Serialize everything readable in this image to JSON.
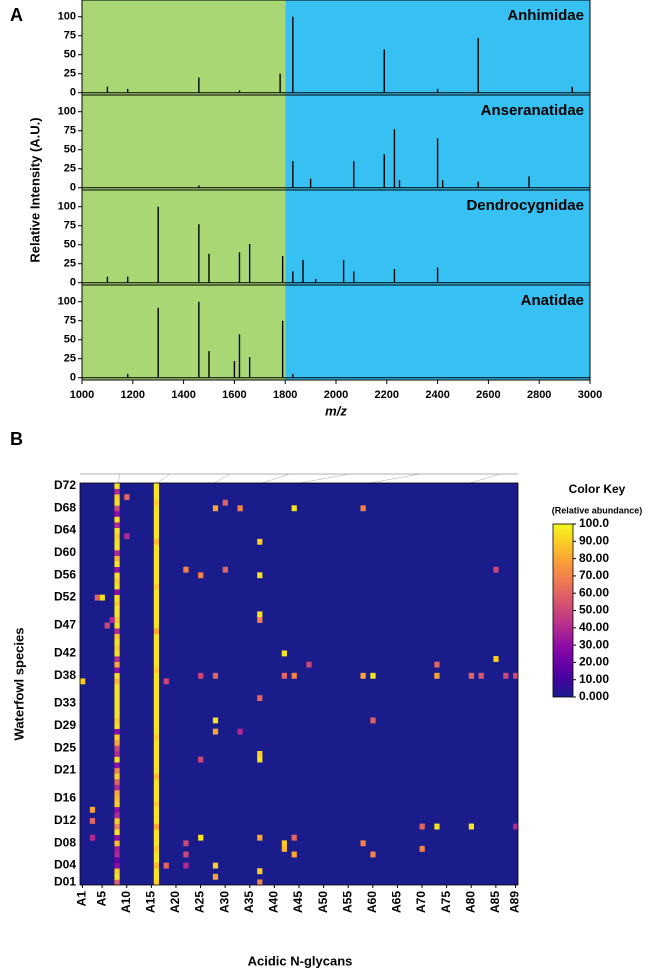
{
  "chart_data": [
    {
      "type": "stem",
      "panel_label": "A",
      "xlabel": "m/z",
      "ylabel": "Relative Intensity (A.U.)",
      "xlim": [
        1000,
        3000
      ],
      "xticks": [
        1000,
        1200,
        1400,
        1600,
        1800,
        2000,
        2200,
        2400,
        2600,
        2800,
        3000
      ],
      "ylim": [
        -3,
        122
      ],
      "yticks": [
        0,
        25,
        50,
        75,
        100
      ],
      "regions": [
        {
          "xlim": [
            1000,
            1800
          ],
          "color": "#a9d774"
        },
        {
          "xlim": [
            1800,
            3000
          ],
          "color": "#37c1f2"
        }
      ],
      "series": [
        {
          "name": "Anhimidae",
          "color": "#000000",
          "x": [
            1100,
            1180,
            1460,
            1620,
            1780,
            1830,
            2190,
            2400,
            2560,
            2930
          ],
          "values": [
            8,
            5,
            20,
            3,
            25,
            100,
            57,
            5,
            72,
            8
          ]
        },
        {
          "name": "Anseranatidae",
          "color": "#000000",
          "x": [
            1460,
            1830,
            1900,
            2070,
            2190,
            2230,
            2250,
            2400,
            2420,
            2560,
            2760
          ],
          "values": [
            3,
            35,
            12,
            35,
            44,
            77,
            10,
            65,
            10,
            8,
            15
          ]
        },
        {
          "name": "Dendrocygnidae",
          "color": "#000000",
          "x": [
            1100,
            1180,
            1300,
            1460,
            1500,
            1620,
            1660,
            1790,
            1830,
            1870,
            1920,
            2030,
            2070,
            2230,
            2400
          ],
          "values": [
            8,
            8,
            100,
            77,
            38,
            40,
            51,
            35,
            15,
            30,
            5,
            30,
            15,
            18,
            20
          ]
        },
        {
          "name": "Anatidae",
          "color": "#000000",
          "x": [
            1180,
            1300,
            1460,
            1500,
            1600,
            1620,
            1660,
            1790,
            1830
          ],
          "values": [
            5,
            92,
            100,
            35,
            22,
            57,
            27,
            75,
            5
          ]
        }
      ]
    },
    {
      "type": "heatmap",
      "panel_label": "B",
      "xlabel": "Acidic N-glycans",
      "ylabel": "Waterfowl species",
      "columns": [
        "A1",
        null,
        null,
        null,
        "A5",
        null,
        null,
        null,
        null,
        "A10",
        null,
        null,
        null,
        null,
        "A15",
        null,
        null,
        null,
        null,
        "A20",
        null,
        null,
        null,
        null,
        "A25",
        null,
        null,
        null,
        null,
        "A30",
        null,
        null,
        null,
        null,
        "A35",
        null,
        null,
        null,
        null,
        "A40",
        null,
        null,
        null,
        null,
        "A45",
        null,
        null,
        null,
        null,
        "A50",
        null,
        null,
        null,
        null,
        "A55",
        null,
        null,
        null,
        null,
        "A60",
        null,
        null,
        null,
        null,
        "A65",
        null,
        null,
        null,
        null,
        "A70",
        null,
        null,
        null,
        null,
        "A75",
        null,
        null,
        null,
        null,
        "A80",
        null,
        null,
        null,
        null,
        "A85",
        null,
        null,
        null,
        "A89"
      ],
      "rows": [
        "D01",
        null,
        null,
        "D04",
        null,
        null,
        null,
        "D08",
        null,
        null,
        null,
        "D12",
        null,
        null,
        null,
        "D16",
        null,
        null,
        null,
        null,
        "D21",
        null,
        null,
        null,
        "D25",
        null,
        null,
        null,
        "D29",
        null,
        null,
        null,
        "D33",
        null,
        null,
        null,
        null,
        "D38",
        null,
        null,
        null,
        "D42",
        null,
        null,
        null,
        null,
        "D47",
        null,
        null,
        null,
        null,
        "D52",
        null,
        null,
        null,
        "D56",
        null,
        null,
        null,
        "D60",
        null,
        null,
        null,
        "D64",
        null,
        null,
        null,
        "D68",
        null,
        null,
        null,
        "D72"
      ],
      "full_columns": [
        {
          "column": 7,
          "values": [
            60,
            95,
            90,
            30,
            20,
            40,
            35,
            85,
            30,
            95,
            70,
            90,
            40,
            30,
            90,
            85,
            80,
            40,
            60,
            90,
            70,
            30,
            95,
            40,
            50,
            80,
            90,
            30,
            95,
            90,
            95,
            95,
            95,
            95,
            95,
            95,
            85,
            95,
            30,
            80,
            40,
            95,
            90,
            95,
            90,
            40,
            95,
            90,
            95,
            95,
            90,
            95,
            30,
            95,
            90,
            95,
            30,
            95,
            85,
            40,
            95,
            95,
            90,
            95,
            40,
            95,
            30,
            50,
            95,
            90,
            40,
            95
          ]
        },
        {
          "column": 15,
          "values": [
            90,
            95,
            95,
            85,
            95,
            95,
            90,
            95,
            95,
            95,
            80,
            95,
            95,
            95,
            90,
            95,
            95,
            95,
            95,
            85,
            95,
            95,
            95,
            95,
            95,
            95,
            90,
            95,
            95,
            95,
            95,
            95,
            95,
            95,
            95,
            95,
            95,
            95,
            90,
            95,
            95,
            95,
            95,
            95,
            95,
            80,
            95,
            95,
            95,
            95,
            95,
            95,
            95,
            90,
            95,
            95,
            95,
            95,
            95,
            95,
            95,
            85,
            95,
            95,
            95,
            95,
            95,
            95,
            90,
            95,
            95,
            95
          ]
        }
      ],
      "cells": [
        [
          2,
          13,
          80
        ],
        [
          2,
          11,
          60
        ],
        [
          2,
          8,
          40
        ],
        [
          4,
          51,
          95
        ],
        [
          3,
          51,
          60
        ],
        [
          5,
          46,
          50
        ],
        [
          6,
          47,
          40
        ],
        [
          0,
          36,
          90
        ],
        [
          9,
          69,
          60
        ],
        [
          9,
          62,
          40
        ],
        [
          17,
          3,
          60
        ],
        [
          17,
          36,
          50
        ],
        [
          21,
          56,
          70
        ],
        [
          21,
          7,
          50
        ],
        [
          21,
          3,
          40
        ],
        [
          21,
          5,
          50
        ],
        [
          24,
          8,
          95
        ],
        [
          24,
          55,
          70
        ],
        [
          24,
          37,
          50
        ],
        [
          24,
          22,
          50
        ],
        [
          27,
          67,
          80
        ],
        [
          27,
          29,
          95
        ],
        [
          27,
          27,
          80
        ],
        [
          27,
          37,
          60
        ],
        [
          27,
          3,
          90
        ],
        [
          27,
          1,
          80
        ],
        [
          29,
          56,
          60
        ],
        [
          29,
          68,
          60
        ],
        [
          32,
          27,
          40
        ],
        [
          32,
          67,
          70
        ],
        [
          36,
          61,
          90
        ],
        [
          36,
          55,
          95
        ],
        [
          36,
          48,
          95
        ],
        [
          36,
          22,
          95
        ],
        [
          36,
          23,
          90
        ],
        [
          36,
          8,
          80
        ],
        [
          36,
          2,
          90
        ],
        [
          36,
          0,
          70
        ],
        [
          36,
          47,
          70
        ],
        [
          36,
          33,
          60
        ],
        [
          41,
          41,
          95
        ],
        [
          41,
          37,
          60
        ],
        [
          41,
          7,
          90
        ],
        [
          41,
          6,
          85
        ],
        [
          43,
          67,
          95
        ],
        [
          43,
          37,
          70
        ],
        [
          43,
          5,
          80
        ],
        [
          43,
          8,
          60
        ],
        [
          46,
          39,
          50
        ],
        [
          57,
          67,
          70
        ],
        [
          57,
          37,
          80
        ],
        [
          57,
          7,
          70
        ],
        [
          59,
          37,
          95
        ],
        [
          59,
          5,
          70
        ],
        [
          59,
          29,
          60
        ],
        [
          69,
          6,
          70
        ],
        [
          69,
          10,
          60
        ],
        [
          72,
          10,
          95
        ],
        [
          72,
          37,
          80
        ],
        [
          72,
          39,
          60
        ],
        [
          79,
          10,
          95
        ],
        [
          79,
          37,
          60
        ],
        [
          81,
          37,
          55
        ],
        [
          84,
          40,
          90
        ],
        [
          86,
          37,
          50
        ],
        [
          84,
          56,
          50
        ],
        [
          88,
          10,
          40
        ],
        [
          88,
          37,
          50
        ]
      ],
      "colorbar": {
        "title": "Color Key",
        "subtitle": "(Relative abundance)",
        "lim": [
          0,
          100
        ],
        "colors": [
          "#1a1c8c",
          "#41049d",
          "#6a00a8",
          "#8f0da4",
          "#b12a90",
          "#cc4778",
          "#e16462",
          "#f2844b",
          "#fca636",
          "#fcce25",
          "#f0f921"
        ],
        "ticks": [
          {
            "value": 100,
            "label": "100.0"
          },
          {
            "value": 90,
            "label": "90.00"
          },
          {
            "value": 80,
            "label": "80.00"
          },
          {
            "value": 70,
            "label": "70.00"
          },
          {
            "value": 60,
            "label": "60.00"
          },
          {
            "value": 50,
            "label": "50.00"
          },
          {
            "value": 40,
            "label": "40.00"
          },
          {
            "value": 30,
            "label": "30.00"
          },
          {
            "value": 20,
            "label": "20.00"
          },
          {
            "value": 10,
            "label": "10.00"
          },
          {
            "value": 0,
            "label": "0.000"
          }
        ]
      }
    }
  ]
}
